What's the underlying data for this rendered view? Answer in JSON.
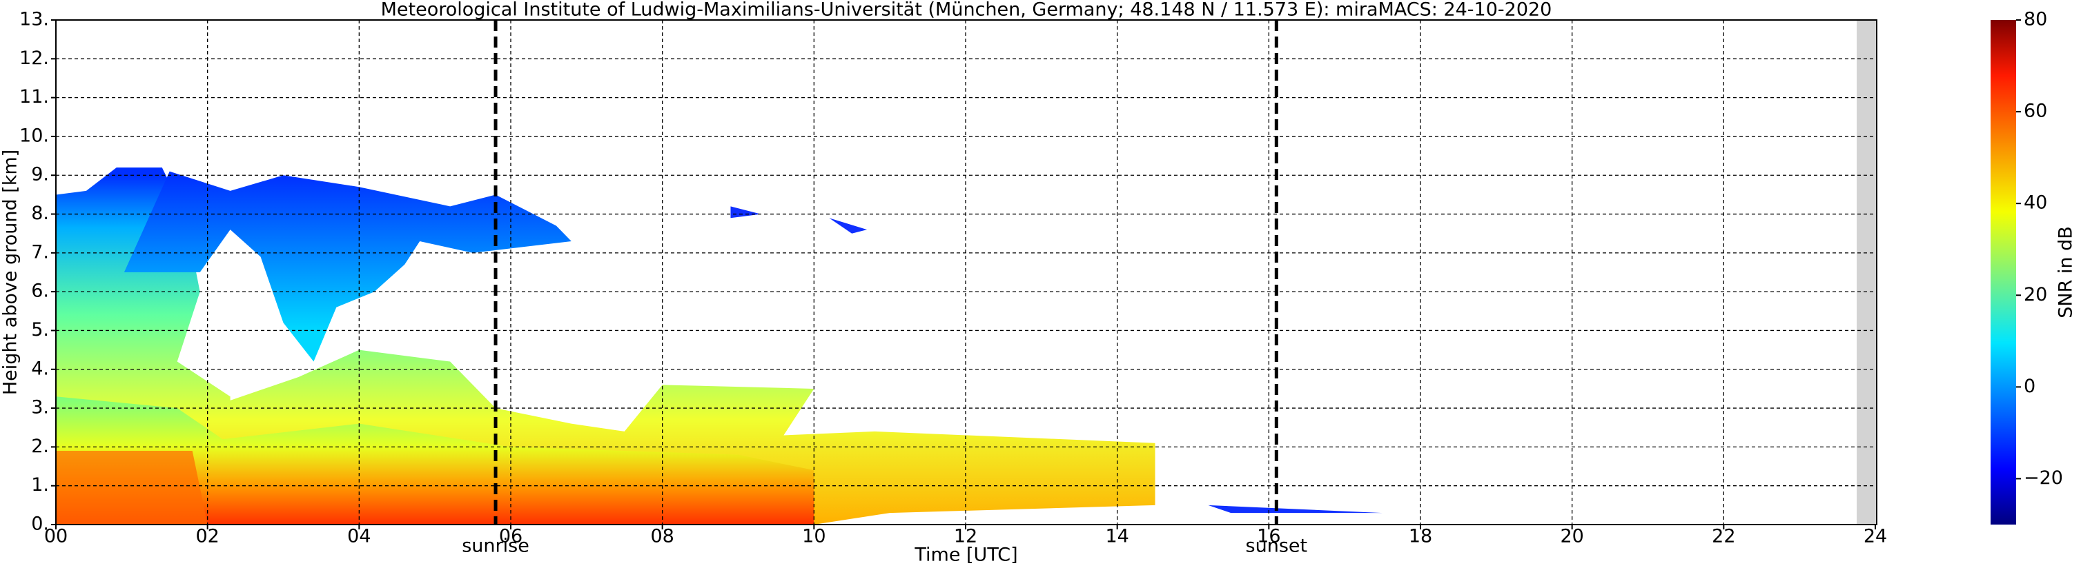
{
  "chart_data": {
    "type": "heatmap",
    "title": "Meteorological Institute of Ludwig-Maximilians-Universität (München, Germany; 48.148 N / 11.573 E):    miraMACS: 24-10-2020",
    "x_label": "Time [UTC]",
    "y_label": "Height above ground [km]",
    "xlim": [
      0,
      24
    ],
    "ylim": [
      0,
      13
    ],
    "xticks": [
      {
        "value": 0,
        "label": "00"
      },
      {
        "value": 2,
        "label": "02"
      },
      {
        "value": 4,
        "label": "04"
      },
      {
        "value": 6,
        "label": "06"
      },
      {
        "value": 8,
        "label": "08"
      },
      {
        "value": 10,
        "label": "10"
      },
      {
        "value": 12,
        "label": "12"
      },
      {
        "value": 14,
        "label": "14"
      },
      {
        "value": 16,
        "label": "16"
      },
      {
        "value": 18,
        "label": "18"
      },
      {
        "value": 20,
        "label": "20"
      },
      {
        "value": 22,
        "label": "22"
      },
      {
        "value": 24,
        "label": "24"
      }
    ],
    "yticks": [
      {
        "value": 0,
        "label": "0."
      },
      {
        "value": 1,
        "label": "1."
      },
      {
        "value": 2,
        "label": "2."
      },
      {
        "value": 3,
        "label": "3."
      },
      {
        "value": 4,
        "label": "4."
      },
      {
        "value": 5,
        "label": "5."
      },
      {
        "value": 6,
        "label": "6."
      },
      {
        "value": 7,
        "label": "7."
      },
      {
        "value": 8,
        "label": "8."
      },
      {
        "value": 9,
        "label": "9."
      },
      {
        "value": 10,
        "label": "10."
      },
      {
        "value": 11,
        "label": "11."
      },
      {
        "value": 12,
        "label": "12."
      },
      {
        "value": 13,
        "label": "13."
      }
    ],
    "grid": true,
    "annotations": [
      {
        "label": "sunrise",
        "x": 5.8
      },
      {
        "label": "sunset",
        "x": 16.1
      }
    ],
    "colorbar": {
      "label": "SNR in dB",
      "lim": [
        -30,
        80
      ],
      "ticks": [
        {
          "value": -20,
          "label": "−20"
        },
        0,
        20,
        40,
        60,
        80
      ]
    }
  }
}
